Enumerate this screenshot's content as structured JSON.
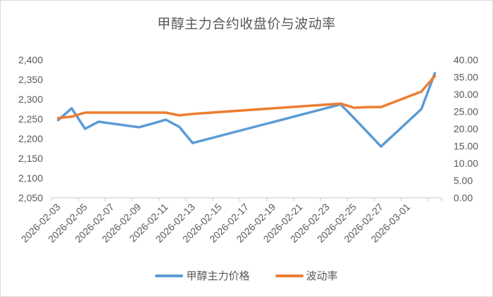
{
  "chart_data": {
    "type": "line",
    "title": "甲醇主力合约收盘价与波动率",
    "xlabel": "",
    "ylabel": "",
    "y2label": "",
    "x": [
      "2026-02-03",
      "2026-02-04",
      "2026-02-05",
      "2026-02-06",
      "2026-02-09",
      "2026-02-10",
      "2026-02-11",
      "2026-02-12",
      "2026-02-13",
      "2026-02-24",
      "2026-02-25",
      "2026-02-26",
      "2026-02-27",
      "2026-03-02",
      "2026-03-03"
    ],
    "series": [
      {
        "name": "甲醇主力价格",
        "axis": "left",
        "color": "#5B9BD5",
        "values": [
          2247,
          2277,
          2225,
          2243,
          2229,
          2238,
          2248,
          2230,
          2189,
          2287,
          2252,
          2216,
          2180,
          2275,
          2366
        ]
      },
      {
        "name": "波动率",
        "axis": "right",
        "color": "#ED7D31",
        "values": [
          23.1,
          23.5,
          24.7,
          24.7,
          24.7,
          24.7,
          24.7,
          23.9,
          24.3,
          27.3,
          26.1,
          26.3,
          26.3,
          30.8,
          35.3
        ]
      }
    ],
    "ylim": [
      2050,
      2400
    ],
    "y2lim": [
      0,
      40
    ],
    "yticks": [
      "2,050",
      "2,100",
      "2,150",
      "2,200",
      "2,250",
      "2,300",
      "2,350",
      "2,400"
    ],
    "y2ticks": [
      "0.00",
      "5.00",
      "10.00",
      "15.00",
      "20.00",
      "25.00",
      "30.00",
      "35.00",
      "40.00"
    ],
    "xtick_labels": [
      "2026-02-03",
      "2026-02-05",
      "2026-02-07",
      "2026-02-09",
      "2026-02-11",
      "2026-02-13",
      "2026-02-15",
      "2026-02-17",
      "2026-02-19",
      "2026-02-21",
      "2026-02-23",
      "2026-02-25",
      "2026-02-27",
      "2026-03-01"
    ],
    "x_axis_start": "2026-02-03",
    "x_axis_days": 29,
    "grid": false,
    "legend_position": "bottom"
  }
}
